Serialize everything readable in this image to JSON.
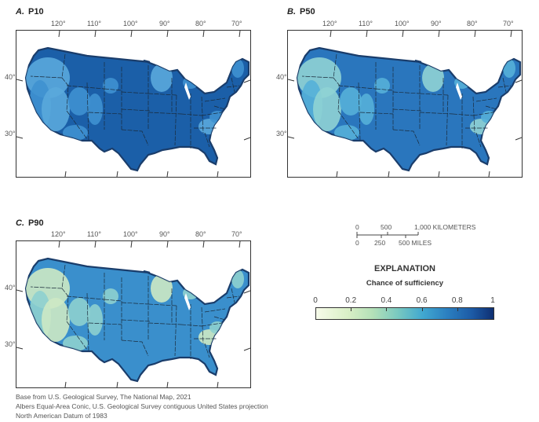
{
  "panels": [
    {
      "letter": "A.",
      "name": "P10",
      "label": "P10"
    },
    {
      "letter": "B.",
      "name": "P50",
      "label": "P50"
    },
    {
      "letter": "C.",
      "name": "P90",
      "label": "P90"
    }
  ],
  "longitude_labels": [
    "120°",
    "110°",
    "100°",
    "90°",
    "80°",
    "70°"
  ],
  "latitude_labels": [
    "40°",
    "30°"
  ],
  "scale_bar": {
    "km_labels": [
      "0",
      "500",
      "1,000 KILOMETERS"
    ],
    "mile_labels": [
      "0",
      "250",
      "500 MILES"
    ]
  },
  "legend": {
    "title": "EXPLANATION",
    "subtitle": "Chance of sufficiency",
    "tick_labels": [
      "0",
      "0.2",
      "0.4",
      "0.6",
      "0.8",
      "1"
    ],
    "min": 0,
    "max": 1,
    "colors": [
      "#f7fbea",
      "#d9efc6",
      "#b3e0b8",
      "#79c9c0",
      "#41a8d0",
      "#2b7fc0",
      "#1c5aa5",
      "#0e2f72"
    ]
  },
  "credits": [
    "Base from U.S. Geological Survey, The National Map, 2021",
    "Albers Equal-Area Conic, U.S. Geological Survey contiguous United States projection",
    "North American Datum of 1983"
  ],
  "palettes": {
    "P10": {
      "base": "#1b5fa8",
      "light": "#3f91d0",
      "lighter": "#5aa8dc"
    },
    "P50": {
      "base": "#2a76bd",
      "light": "#55b0d8",
      "lighter": "#8fd3d4"
    },
    "P90": {
      "base": "#3a8fcc",
      "light": "#8ed0cf",
      "lighter": "#cde9c4"
    }
  }
}
